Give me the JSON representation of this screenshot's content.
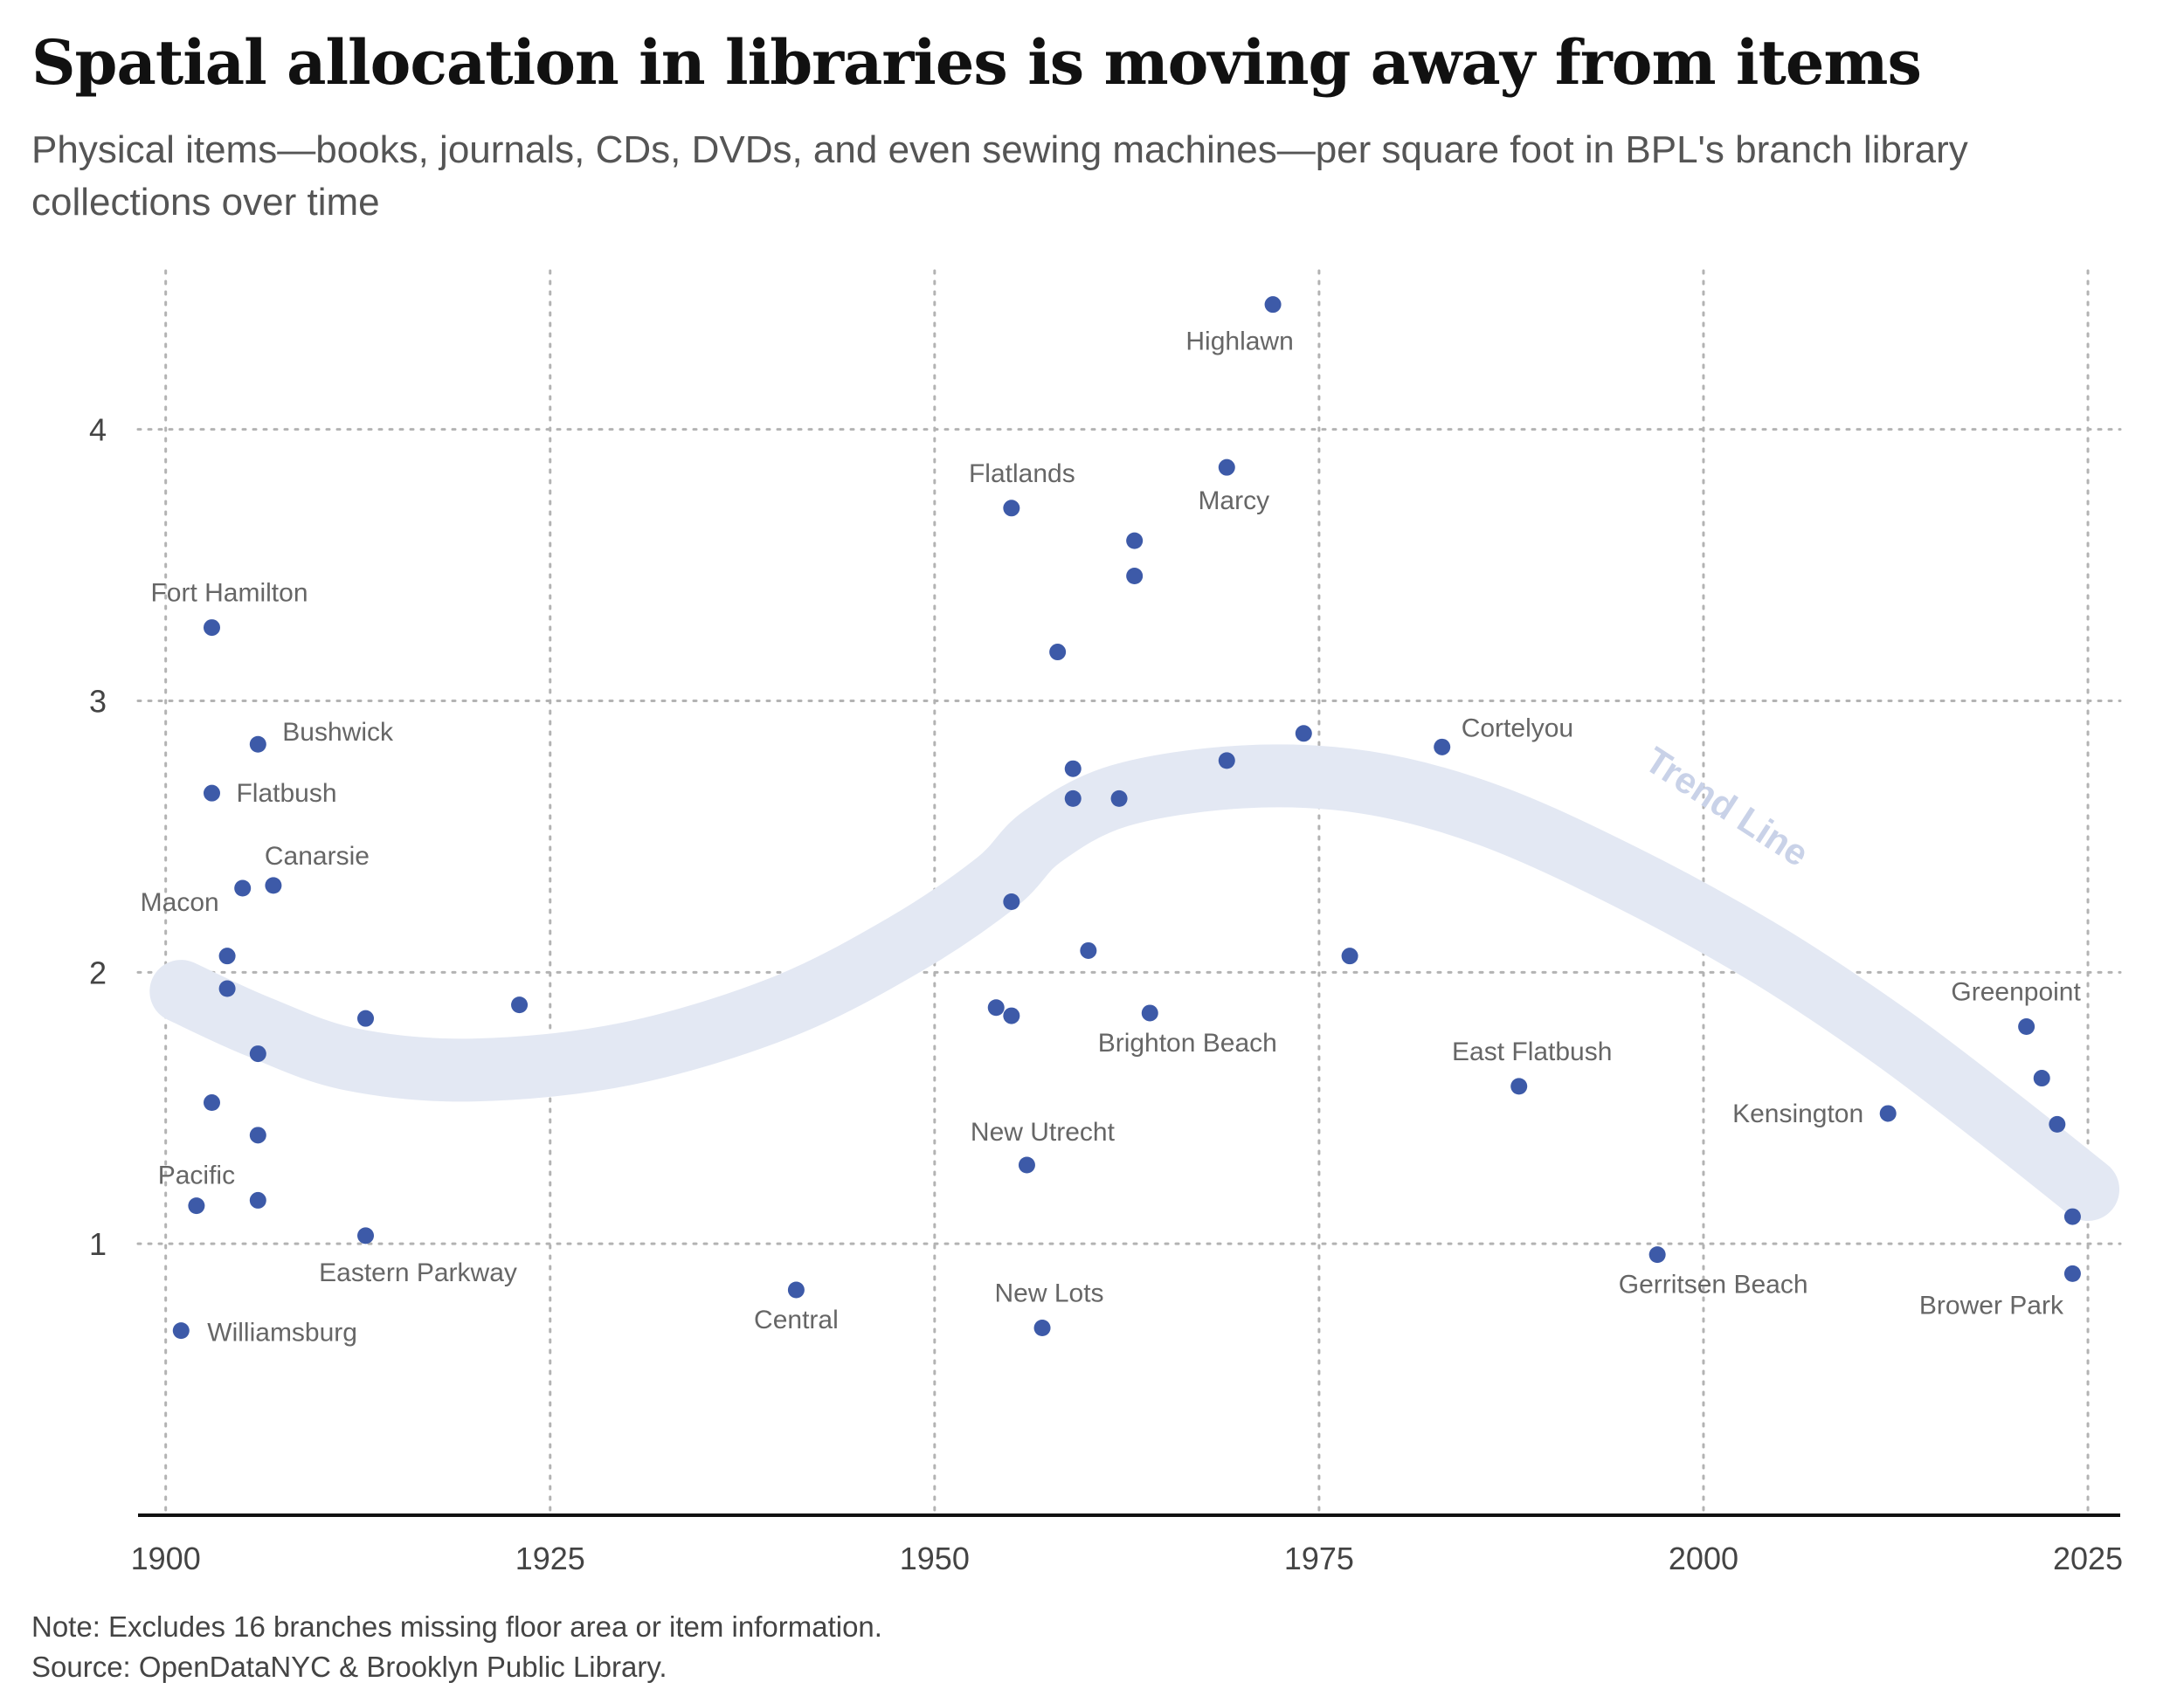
{
  "title": "Spatial allocation in libraries is moving away from items",
  "subtitle": "Physical items—books, journals, CDs, DVDs, and even sewing machines—per square foot in BPL's branch library collections over time",
  "note": "Note: Excludes 16 branches missing floor area or item information.",
  "source": "Source: OpenDataNYC & Brooklyn Public Library.",
  "colors": {
    "points": "#3d5aa8",
    "trend": "#e3e8f3",
    "trend_label": "#c9d2e8",
    "grid": "#b3b3b3",
    "axis": "#111111"
  },
  "chart_data": {
    "type": "scatter",
    "xlabel": "",
    "ylabel": "",
    "xlim": [
      1898.2,
      2027.1
    ],
    "ylim": [
      0.0,
      4.43
    ],
    "xticks": [
      1900,
      1925,
      1950,
      1975,
      2000,
      2025
    ],
    "yticks": [
      1,
      2,
      3,
      4
    ],
    "grid": true,
    "trend_label": "Trend Line",
    "trend": [
      {
        "x": 1901,
        "y": 1.93
      },
      {
        "x": 1906,
        "y": 1.8
      },
      {
        "x": 1912,
        "y": 1.68
      },
      {
        "x": 1920,
        "y": 1.64
      },
      {
        "x": 1930,
        "y": 1.7
      },
      {
        "x": 1940,
        "y": 1.87
      },
      {
        "x": 1948,
        "y": 2.1
      },
      {
        "x": 1954,
        "y": 2.33
      },
      {
        "x": 1957,
        "y": 2.5
      },
      {
        "x": 1962,
        "y": 2.65
      },
      {
        "x": 1970,
        "y": 2.72
      },
      {
        "x": 1978,
        "y": 2.7
      },
      {
        "x": 1986,
        "y": 2.58
      },
      {
        "x": 1995,
        "y": 2.35
      },
      {
        "x": 2004,
        "y": 2.07
      },
      {
        "x": 2012,
        "y": 1.77
      },
      {
        "x": 2019,
        "y": 1.47
      },
      {
        "x": 2025,
        "y": 1.2
      }
    ],
    "points": [
      {
        "x": 1901,
        "y": 0.68,
        "label": "Williamsburg"
      },
      {
        "x": 1902,
        "y": 1.14,
        "label": "Pacific"
      },
      {
        "x": 1903,
        "y": 3.27,
        "label": "Fort Hamilton"
      },
      {
        "x": 1903,
        "y": 2.66,
        "label": "Flatbush"
      },
      {
        "x": 1903,
        "y": 1.52,
        "label": ""
      },
      {
        "x": 1904,
        "y": 2.06,
        "label": ""
      },
      {
        "x": 1904,
        "y": 1.94,
        "label": ""
      },
      {
        "x": 1905,
        "y": 2.31,
        "label": "Macon"
      },
      {
        "x": 1906,
        "y": 2.84,
        "label": "Bushwick"
      },
      {
        "x": 1906,
        "y": 1.7,
        "label": ""
      },
      {
        "x": 1906,
        "y": 1.4,
        "label": ""
      },
      {
        "x": 1906,
        "y": 1.16,
        "label": ""
      },
      {
        "x": 1907,
        "y": 2.32,
        "label": "Canarsie"
      },
      {
        "x": 1913,
        "y": 1.83,
        "label": ""
      },
      {
        "x": 1913,
        "y": 1.03,
        "label": "Eastern Parkway"
      },
      {
        "x": 1923,
        "y": 1.88,
        "label": ""
      },
      {
        "x": 1941,
        "y": 0.83,
        "label": "Central"
      },
      {
        "x": 1954,
        "y": 1.87,
        "label": ""
      },
      {
        "x": 1955,
        "y": 3.71,
        "label": "Flatlands"
      },
      {
        "x": 1955,
        "y": 2.26,
        "label": ""
      },
      {
        "x": 1955,
        "y": 1.84,
        "label": ""
      },
      {
        "x": 1956,
        "y": 1.29,
        "label": "New Utrecht"
      },
      {
        "x": 1957,
        "y": 0.69,
        "label": "New Lots"
      },
      {
        "x": 1958,
        "y": 3.18,
        "label": ""
      },
      {
        "x": 1959,
        "y": 2.75,
        "label": ""
      },
      {
        "x": 1959,
        "y": 2.64,
        "label": ""
      },
      {
        "x": 1960,
        "y": 2.08,
        "label": ""
      },
      {
        "x": 1962,
        "y": 2.64,
        "label": ""
      },
      {
        "x": 1963,
        "y": 3.59,
        "label": ""
      },
      {
        "x": 1963,
        "y": 3.46,
        "label": ""
      },
      {
        "x": 1964,
        "y": 1.85,
        "label": "Brighton Beach"
      },
      {
        "x": 1969,
        "y": 3.86,
        "label": "Marcy"
      },
      {
        "x": 1969,
        "y": 2.78,
        "label": ""
      },
      {
        "x": 1972,
        "y": 4.46,
        "label": "Highlawn"
      },
      {
        "x": 1974,
        "y": 2.88,
        "label": ""
      },
      {
        "x": 1977,
        "y": 2.06,
        "label": ""
      },
      {
        "x": 1983,
        "y": 2.83,
        "label": "Cortelyou"
      },
      {
        "x": 1988,
        "y": 1.58,
        "label": "East Flatbush"
      },
      {
        "x": 1997,
        "y": 0.96,
        "label": "Gerritsen Beach"
      },
      {
        "x": 2012,
        "y": 1.48,
        "label": "Kensington"
      },
      {
        "x": 2021,
        "y": 1.8,
        "label": "Greenpoint"
      },
      {
        "x": 2022,
        "y": 1.61,
        "label": ""
      },
      {
        "x": 2023,
        "y": 1.44,
        "label": ""
      },
      {
        "x": 2024,
        "y": 1.1,
        "label": ""
      },
      {
        "x": 2024,
        "y": 0.89,
        "label": "Brower Park"
      }
    ]
  }
}
